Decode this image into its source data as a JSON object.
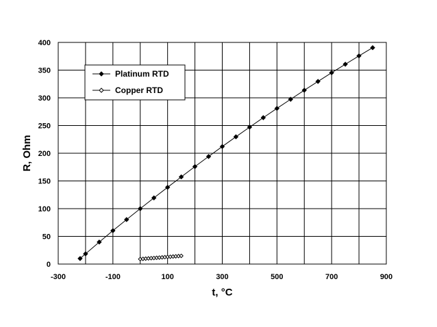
{
  "chart_data": {
    "type": "scatter",
    "xlabel": "t,  °C",
    "ylabel": "R, Ohm",
    "xlim": [
      -300,
      900
    ],
    "ylim": [
      0,
      400
    ],
    "xticks": [
      -300,
      -100,
      100,
      300,
      500,
      700,
      900
    ],
    "yticks": [
      0,
      50,
      100,
      150,
      200,
      250,
      300,
      350,
      400
    ],
    "x_gridlines": [
      -200,
      -100,
      0,
      100,
      200,
      300,
      400,
      500,
      600,
      700,
      800,
      900
    ],
    "y_gridlines": [
      50,
      100,
      150,
      200,
      250,
      300,
      350,
      400
    ],
    "grid": true,
    "legend_position": "top-left",
    "series": [
      {
        "name": "Platinum RTD",
        "marker": "filled-diamond",
        "line": true,
        "color": "#000000",
        "x": [
          -220,
          -200,
          -150,
          -100,
          -50,
          0,
          50,
          100,
          150,
          200,
          250,
          300,
          350,
          400,
          450,
          500,
          550,
          600,
          650,
          700,
          750,
          800,
          850
        ],
        "y": [
          10,
          18.5,
          39.7,
          60.3,
          80.3,
          100,
          119.4,
          138.5,
          157.3,
          175.9,
          194.1,
          212.1,
          229.7,
          247.1,
          264.2,
          280.9,
          297.4,
          313.7,
          329.6,
          345.3,
          360.6,
          375.7,
          390.5
        ]
      },
      {
        "name": "Copper RTD",
        "marker": "open-diamond",
        "line": true,
        "color": "#000000",
        "x": [
          0,
          10,
          20,
          30,
          40,
          50,
          60,
          70,
          80,
          90,
          100,
          110,
          120,
          130,
          140,
          150
        ],
        "y": [
          9.0,
          9.4,
          9.8,
          10.2,
          10.6,
          10.9,
          11.3,
          11.7,
          12.1,
          12.5,
          12.9,
          13.2,
          13.6,
          14.0,
          14.4,
          14.8
        ]
      }
    ]
  }
}
